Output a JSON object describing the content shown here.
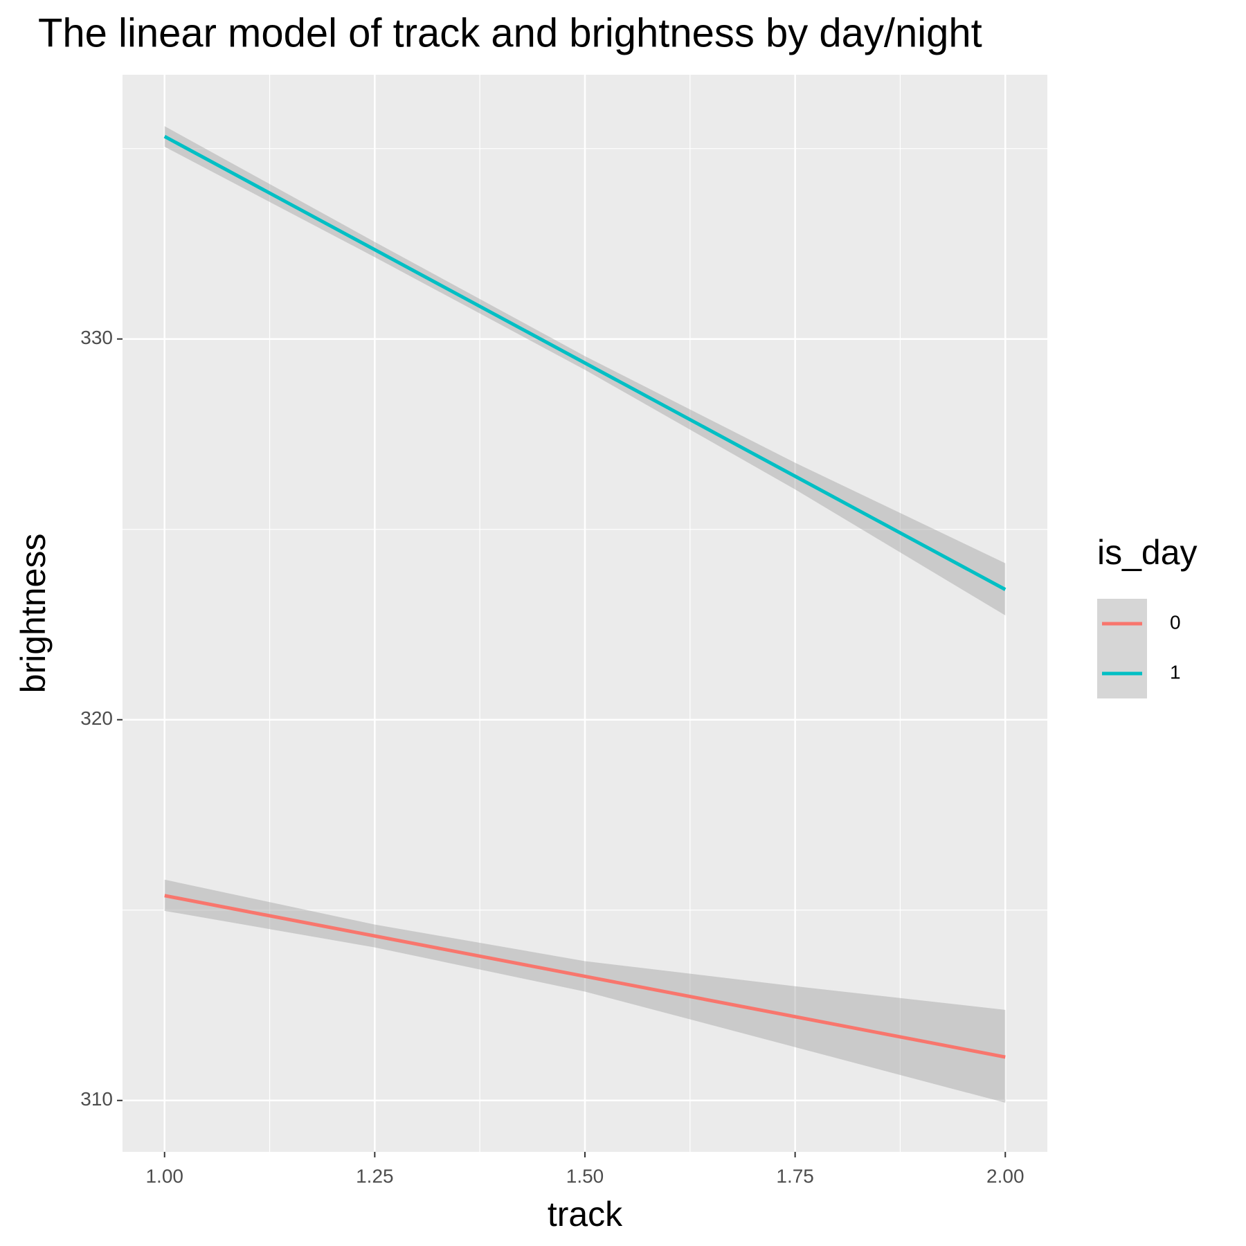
{
  "chart_data": {
    "type": "line",
    "title": "The linear model of track and brightness by day/night",
    "x_label": "track",
    "y_label": "brightness",
    "legend_title": "is_day",
    "x": [
      1.0,
      1.25,
      1.5,
      1.75,
      2.0
    ],
    "series": [
      {
        "name": "0",
        "color": "#f8766d",
        "values": [
          315.38,
          314.32,
          313.26,
          312.2,
          311.14
        ],
        "lower": [
          314.98,
          314.02,
          312.86,
          311.4,
          309.94
        ],
        "upper": [
          315.8,
          314.62,
          313.66,
          313.0,
          312.38
        ]
      },
      {
        "name": "1",
        "color": "#00bfc4",
        "values": [
          335.32,
          332.345,
          329.37,
          326.395,
          323.42
        ],
        "lower": [
          335.05,
          332.15,
          329.19,
          326.05,
          322.74
        ],
        "upper": [
          335.59,
          332.55,
          329.55,
          326.75,
          324.11
        ]
      }
    ],
    "band_color": "#999999",
    "xlim": [
      0.95,
      2.05
    ],
    "xticks": [
      {
        "value": 1,
        "label": "1.00"
      },
      1.25,
      {
        "value": 1.5,
        "label": "1.50"
      },
      1.75,
      {
        "value": 2,
        "label": "2.00"
      }
    ],
    "ylim": [
      308.65,
      336.94
    ],
    "yticks": [
      310,
      320,
      330
    ],
    "grid": true,
    "legend_position": "right"
  }
}
